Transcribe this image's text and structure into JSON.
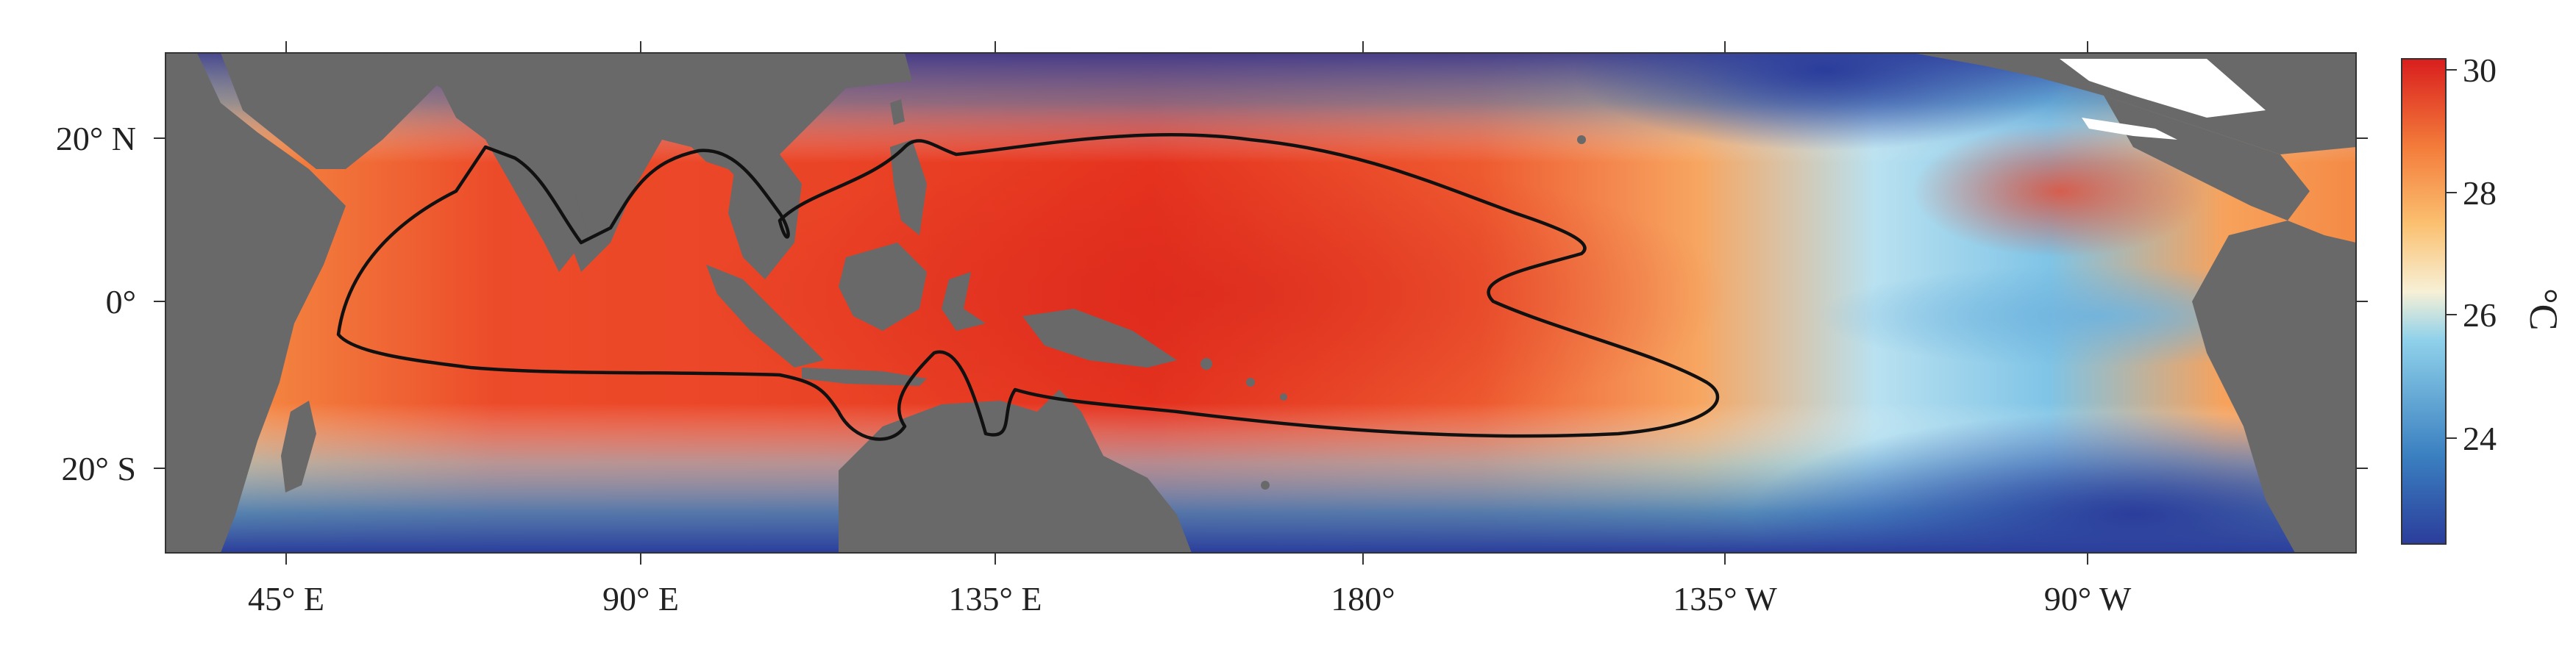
{
  "map": {
    "type": "sea_surface_temperature_map",
    "region": "Tropical Indo-Pacific",
    "x_tick_labels": [
      "45° E",
      "90° E",
      "135° E",
      "180°",
      "135° W",
      "90° W"
    ],
    "y_tick_labels": [
      "20° N",
      "0°",
      "20° S"
    ],
    "contour_level_label": "",
    "colorbar": {
      "unit": "°C",
      "tick_labels": [
        "30",
        "28",
        "26",
        "24"
      ],
      "min": 22.3,
      "max": 30,
      "colors": [
        "#2b3d9b",
        "#3a7fc0",
        "#8fd1ea",
        "#f7f0d6",
        "#fbc070",
        "#f37b3a",
        "#d91e1e"
      ]
    },
    "land_color": "#696969",
    "contour_color": "#111111"
  }
}
